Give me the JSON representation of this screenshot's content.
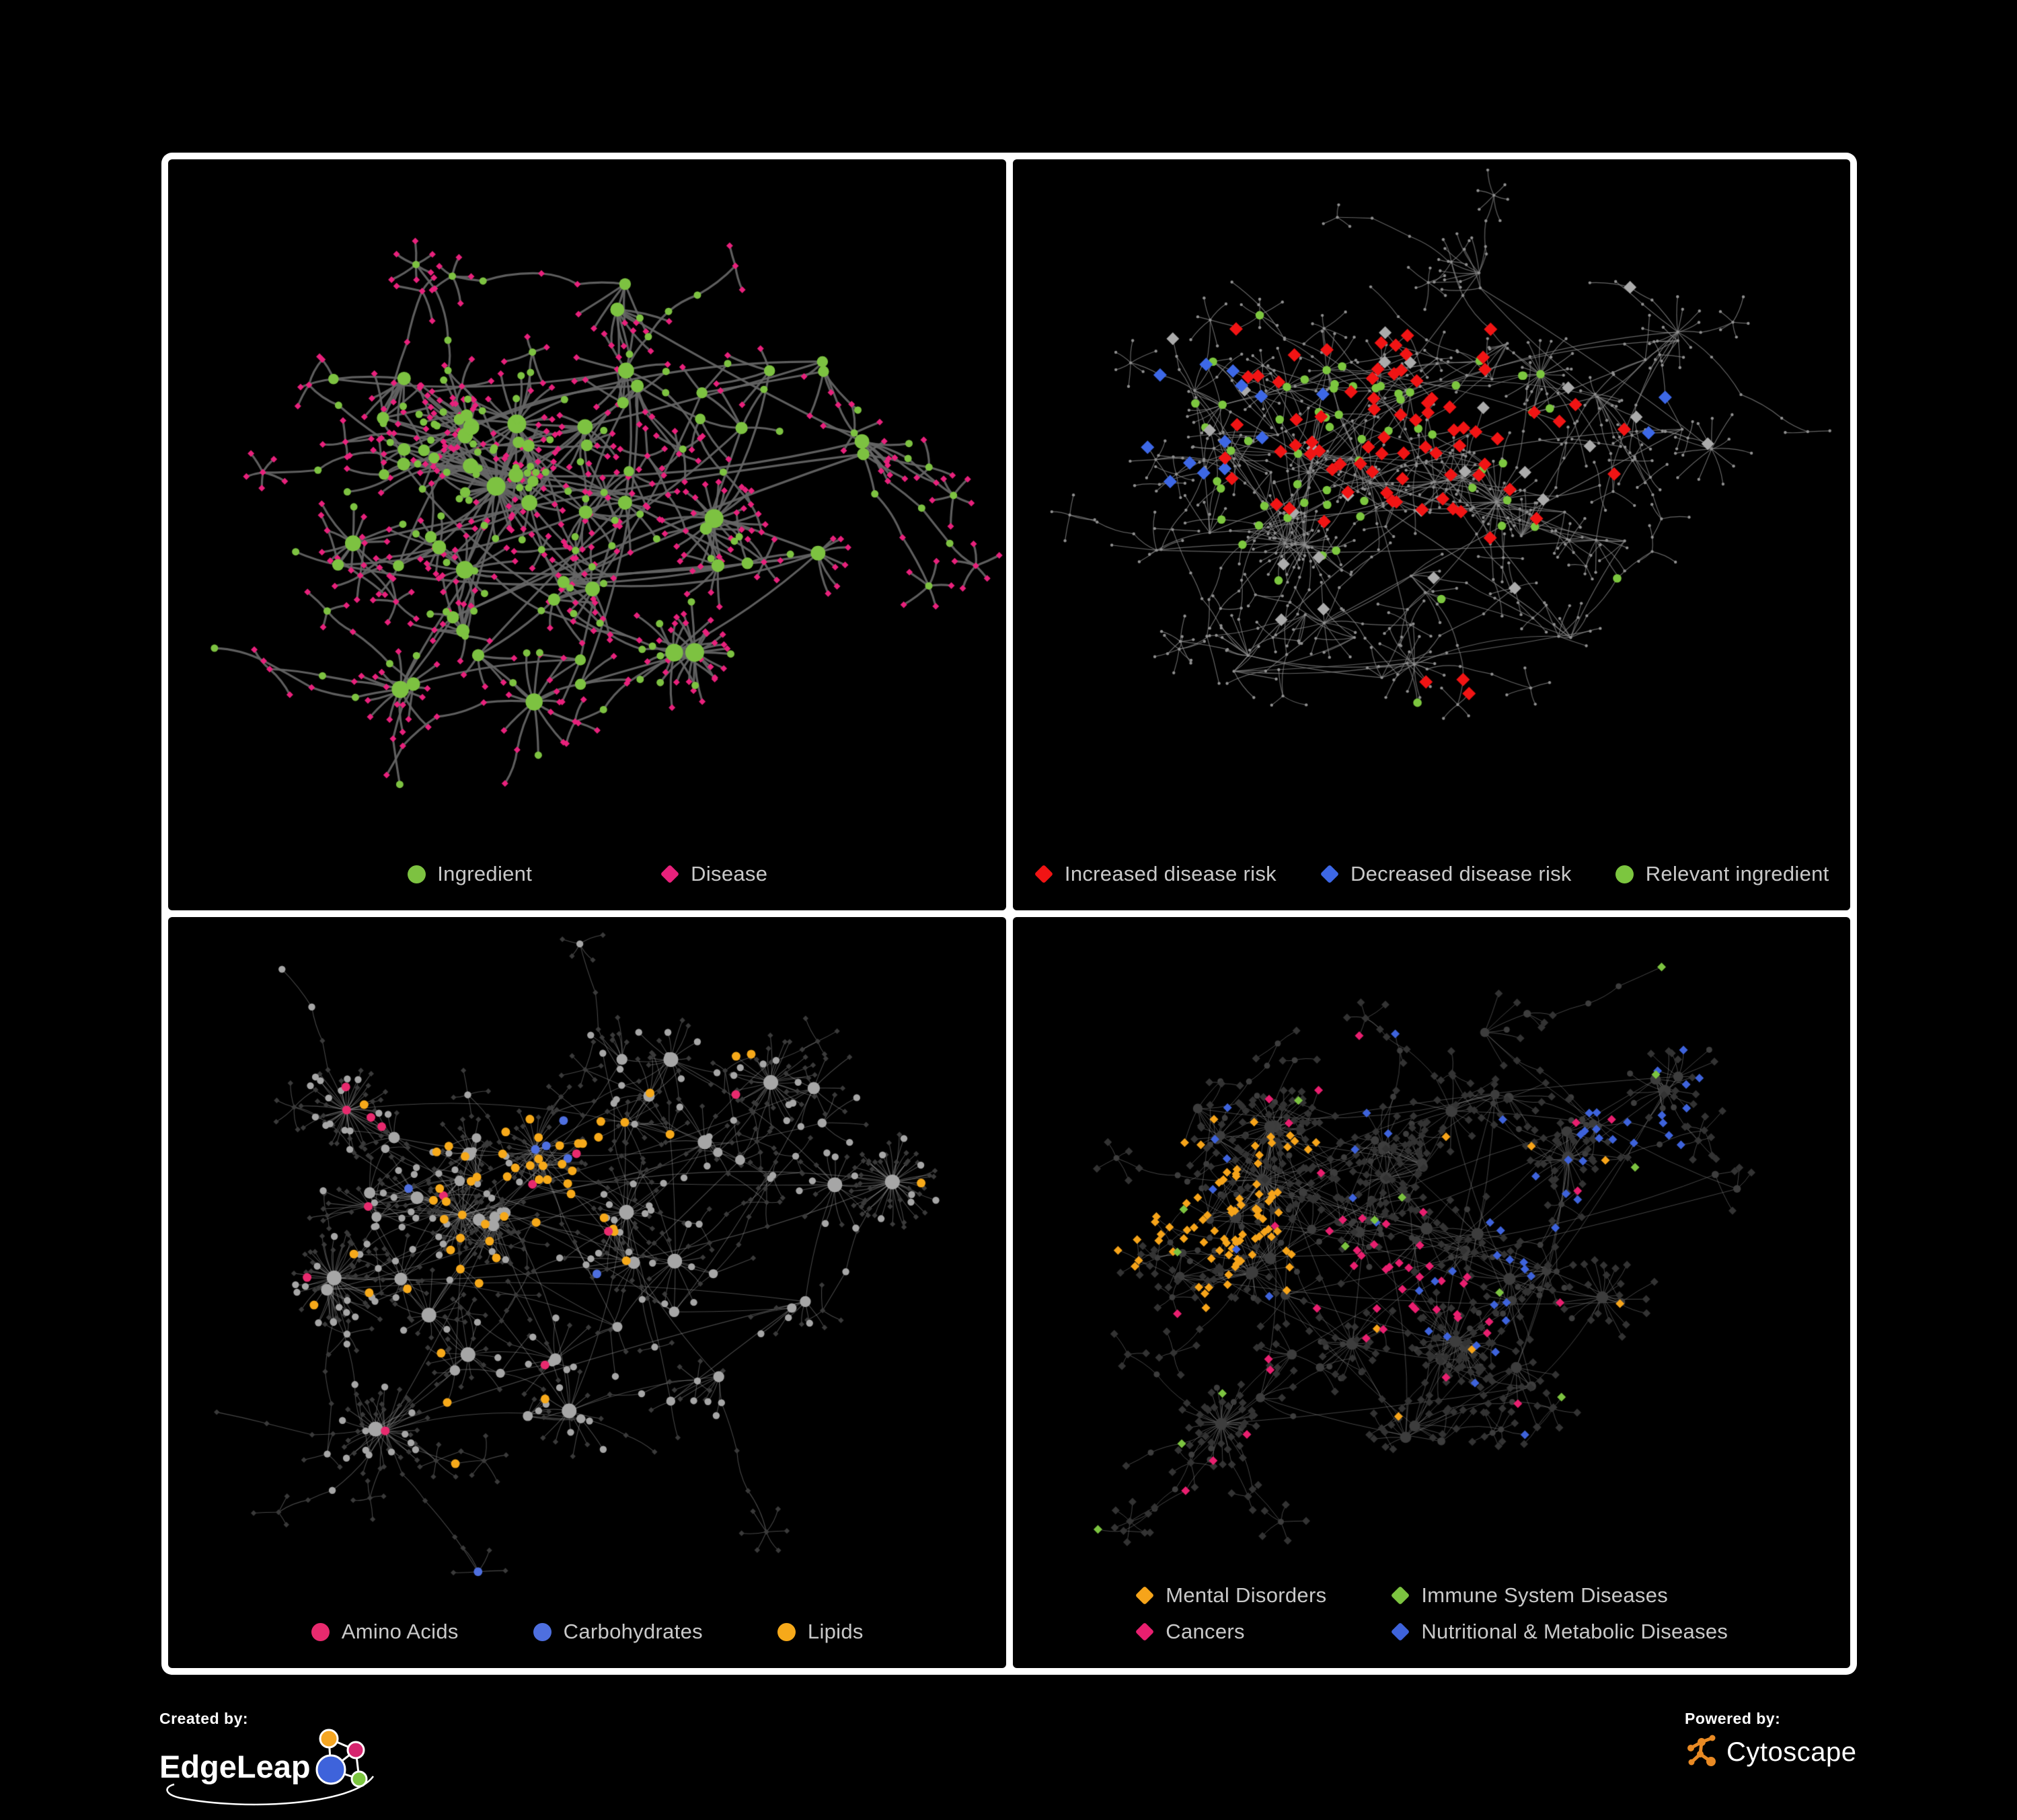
{
  "page": {
    "background": "#000000",
    "frame_color": "#ffffff",
    "legend_text_color": "#c9c9c9"
  },
  "panels": [
    {
      "name": "ingredient-disease-network",
      "legend": [
        {
          "label": "Ingredient",
          "shape": "circle",
          "color": "#7DC241"
        },
        {
          "label": "Disease",
          "shape": "diamond",
          "color": "#E8217C"
        }
      ]
    },
    {
      "name": "disease-risk-network",
      "legend": [
        {
          "label": "Increased disease risk",
          "shape": "diamond",
          "color": "#F11414"
        },
        {
          "label": "Decreased disease risk",
          "shape": "diamond",
          "color": "#3D68E6"
        },
        {
          "label": "Relevant ingredient",
          "shape": "circle",
          "color": "#7CC63F"
        }
      ]
    },
    {
      "name": "ingredient-classes-network",
      "legend": [
        {
          "label": "Amino Acids",
          "shape": "circle",
          "color": "#E82A6E"
        },
        {
          "label": "Carbohydrates",
          "shape": "circle",
          "color": "#4E6FDF"
        },
        {
          "label": "Lipids",
          "shape": "circle",
          "color": "#F6A91A"
        }
      ]
    },
    {
      "name": "disease-classes-network",
      "legend": [
        {
          "label": "Mental Disorders",
          "shape": "diamond",
          "color": "#F6A41A"
        },
        {
          "label": "Immune System Diseases",
          "shape": "diamond",
          "color": "#7CC340"
        },
        {
          "label": "Cancers",
          "shape": "diamond",
          "color": "#E81F6F"
        },
        {
          "label": "Nutritional & Metabolic Diseases",
          "shape": "diamond",
          "color": "#3E63DB"
        }
      ]
    }
  ],
  "footer": {
    "created_by_label": "Created by:",
    "created_by_name": "EdgeLeap",
    "powered_by_label": "Powered by:",
    "powered_by_name": "Cytoscape",
    "cytoscape_orange": "#E98A24",
    "edgeleap_logo_colors": [
      "#F5A623",
      "#D6246E",
      "#3E63DB",
      "#7CC63F"
    ]
  },
  "network_styles": {
    "p1": {
      "edge": "#666666",
      "edge_w": 3.2,
      "edge_a": 0.92,
      "ingredient": "#7DC241",
      "disease": "#E8217C"
    },
    "p2": {
      "edge": "#858585",
      "edge_w": 1.2,
      "edge_a": 0.75,
      "node": "#8f8f8f",
      "increased": "#F11414",
      "decreased": "#3D68E6",
      "neutral": "#ABABAB",
      "relevant": "#7CC63F"
    },
    "p3": {
      "edge": "#aaaaaa",
      "edge_w": 1.1,
      "edge_a": 0.42,
      "circle": "#A6A6A6",
      "diamond": "#3A3A3A",
      "amino": "#E82A6E",
      "carb": "#4E6FDF",
      "lipid": "#F6A91A"
    },
    "p4": {
      "edge": "#8a8a8a",
      "edge_w": 1.0,
      "edge_a": 0.5,
      "circle": "#3d3d3d",
      "diamond": "#333333",
      "mental": "#F6A41A",
      "immune": "#7CC340",
      "cancer": "#E81F6F",
      "nutritional": "#3E63DB"
    }
  }
}
